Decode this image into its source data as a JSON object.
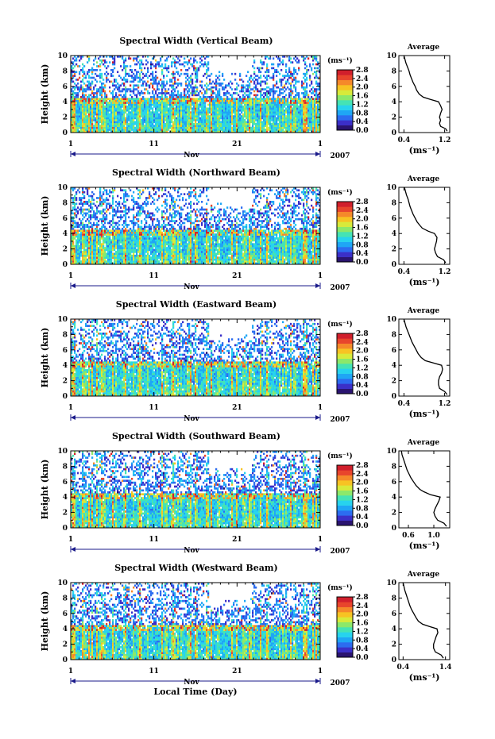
{
  "figure": {
    "xlabel": "Local Time (Day)",
    "month_label": "Nov",
    "year_label": "2007"
  },
  "chart_data": {
    "type": "heatmap",
    "colorbar": {
      "unit": "(ms⁻¹)",
      "range": [
        0.0,
        2.8
      ],
      "ticks": [
        "2.8",
        "2.4",
        "2.0",
        "1.6",
        "1.2",
        "0.8",
        "0.4",
        "0.0"
      ],
      "colors": [
        "#2a1470",
        "#3b2fc8",
        "#2c6cf0",
        "#1fa6f5",
        "#27d3ee",
        "#45e3b4",
        "#8ce86a",
        "#d8ea3a",
        "#f7c323",
        "#f5892a",
        "#e8452c",
        "#d11f2c"
      ]
    },
    "x": {
      "ticks": [
        "1",
        "11",
        "21",
        "1"
      ],
      "tick_days": [
        1,
        11,
        21,
        31
      ],
      "range": [
        1,
        31
      ]
    },
    "y": {
      "label": "Height (km)",
      "ticks": [
        "0",
        "2",
        "4",
        "6",
        "8",
        "10"
      ],
      "range": [
        0,
        10
      ]
    },
    "avg_ylim": [
      0,
      10
    ],
    "panels": [
      {
        "title": "Spectral Width (Vertical Beam)",
        "avg_title": "Average",
        "avg_xlabel": "(ms⁻¹)",
        "avg_xticks": [
          "0.4",
          "1.2"
        ],
        "avg_xtick_values": [
          0.4,
          1.2
        ],
        "avg_xlim": [
          0.3,
          1.3
        ],
        "avg_profile": [
          [
            1.25,
            0.2
          ],
          [
            1.22,
            0.5
          ],
          [
            1.12,
            0.8
          ],
          [
            1.1,
            1.2
          ],
          [
            1.12,
            1.6
          ],
          [
            1.1,
            2.0
          ],
          [
            1.12,
            2.5
          ],
          [
            1.15,
            3.0
          ],
          [
            1.12,
            3.5
          ],
          [
            1.08,
            4.0
          ],
          [
            0.92,
            4.3
          ],
          [
            0.78,
            4.6
          ],
          [
            0.7,
            5.0
          ],
          [
            0.65,
            5.5
          ],
          [
            0.62,
            6.0
          ],
          [
            0.58,
            6.5
          ],
          [
            0.55,
            7.0
          ],
          [
            0.52,
            7.5
          ],
          [
            0.5,
            8.0
          ],
          [
            0.47,
            8.5
          ],
          [
            0.44,
            9.0
          ],
          [
            0.42,
            9.5
          ],
          [
            0.4,
            10.0
          ]
        ]
      },
      {
        "title": "Spectral Width (Northward Beam)",
        "avg_title": "Average",
        "avg_xlabel": "(ms⁻¹)",
        "avg_xticks": [
          "0.4",
          "1.2"
        ],
        "avg_xtick_values": [
          0.4,
          1.2
        ],
        "avg_xlim": [
          0.3,
          1.3
        ],
        "avg_profile": [
          [
            1.22,
            0.2
          ],
          [
            1.18,
            0.6
          ],
          [
            1.06,
            1.0
          ],
          [
            1.02,
            1.5
          ],
          [
            1.0,
            2.0
          ],
          [
            1.02,
            2.5
          ],
          [
            1.04,
            3.0
          ],
          [
            1.05,
            3.5
          ],
          [
            1.0,
            4.0
          ],
          [
            0.88,
            4.3
          ],
          [
            0.76,
            4.7
          ],
          [
            0.72,
            5.0
          ],
          [
            0.66,
            5.5
          ],
          [
            0.62,
            6.0
          ],
          [
            0.58,
            6.5
          ],
          [
            0.55,
            7.0
          ],
          [
            0.52,
            7.5
          ],
          [
            0.5,
            8.0
          ],
          [
            0.48,
            8.5
          ],
          [
            0.45,
            9.0
          ],
          [
            0.43,
            9.5
          ],
          [
            0.41,
            10.0
          ]
        ]
      },
      {
        "title": "Spectral Width (Eastward Beam)",
        "avg_title": "Average",
        "avg_xlabel": "(ms⁻¹)",
        "avg_xticks": [
          "0.4",
          "1.2"
        ],
        "avg_xtick_values": [
          0.4,
          1.2
        ],
        "avg_xlim": [
          0.3,
          1.3
        ],
        "avg_profile": [
          [
            1.25,
            0.2
          ],
          [
            1.2,
            0.6
          ],
          [
            1.1,
            1.0
          ],
          [
            1.08,
            1.5
          ],
          [
            1.08,
            2.0
          ],
          [
            1.1,
            2.5
          ],
          [
            1.14,
            3.0
          ],
          [
            1.16,
            3.5
          ],
          [
            1.14,
            4.0
          ],
          [
            0.98,
            4.3
          ],
          [
            0.82,
            4.6
          ],
          [
            0.74,
            5.0
          ],
          [
            0.68,
            5.5
          ],
          [
            0.64,
            6.0
          ],
          [
            0.6,
            6.5
          ],
          [
            0.56,
            7.0
          ],
          [
            0.53,
            7.5
          ],
          [
            0.5,
            8.0
          ],
          [
            0.47,
            8.5
          ],
          [
            0.44,
            9.0
          ],
          [
            0.42,
            9.5
          ],
          [
            0.4,
            10.0
          ]
        ]
      },
      {
        "title": "Spectral Width (Southward Beam)",
        "avg_title": "Average",
        "avg_xlabel": "(ms⁻¹)",
        "avg_xticks": [
          "0.6",
          "1.0"
        ],
        "avg_xtick_values": [
          0.6,
          1.0
        ],
        "avg_xlim": [
          0.45,
          1.25
        ],
        "avg_profile": [
          [
            1.2,
            0.2
          ],
          [
            1.16,
            0.6
          ],
          [
            1.06,
            1.0
          ],
          [
            1.02,
            1.5
          ],
          [
            1.0,
            2.0
          ],
          [
            1.02,
            2.5
          ],
          [
            1.05,
            3.0
          ],
          [
            1.08,
            3.5
          ],
          [
            1.1,
            4.0
          ],
          [
            0.95,
            4.3
          ],
          [
            0.84,
            4.7
          ],
          [
            0.78,
            5.0
          ],
          [
            0.72,
            5.5
          ],
          [
            0.68,
            6.0
          ],
          [
            0.64,
            6.5
          ],
          [
            0.61,
            7.0
          ],
          [
            0.58,
            7.5
          ],
          [
            0.56,
            8.0
          ],
          [
            0.54,
            8.5
          ],
          [
            0.52,
            9.0
          ],
          [
            0.5,
            9.5
          ],
          [
            0.49,
            10.0
          ]
        ]
      },
      {
        "title": "Spectral Width (Westward Beam)",
        "avg_title": "Average",
        "avg_xlabel": "(ms⁻¹)",
        "avg_xticks": [
          "0.4",
          "1.4"
        ],
        "avg_xtick_values": [
          0.4,
          1.4
        ],
        "avg_xlim": [
          0.3,
          1.5
        ],
        "avg_profile": [
          [
            1.35,
            0.2
          ],
          [
            1.3,
            0.6
          ],
          [
            1.16,
            1.0
          ],
          [
            1.12,
            1.5
          ],
          [
            1.12,
            2.0
          ],
          [
            1.15,
            2.5
          ],
          [
            1.18,
            3.0
          ],
          [
            1.22,
            3.5
          ],
          [
            1.2,
            4.0
          ],
          [
            1.02,
            4.3
          ],
          [
            0.86,
            4.6
          ],
          [
            0.76,
            5.0
          ],
          [
            0.7,
            5.5
          ],
          [
            0.65,
            6.0
          ],
          [
            0.6,
            6.5
          ],
          [
            0.56,
            7.0
          ],
          [
            0.53,
            7.5
          ],
          [
            0.5,
            8.0
          ],
          [
            0.47,
            8.5
          ],
          [
            0.44,
            9.0
          ],
          [
            0.42,
            9.5
          ],
          [
            0.4,
            10.0
          ]
        ]
      }
    ]
  }
}
